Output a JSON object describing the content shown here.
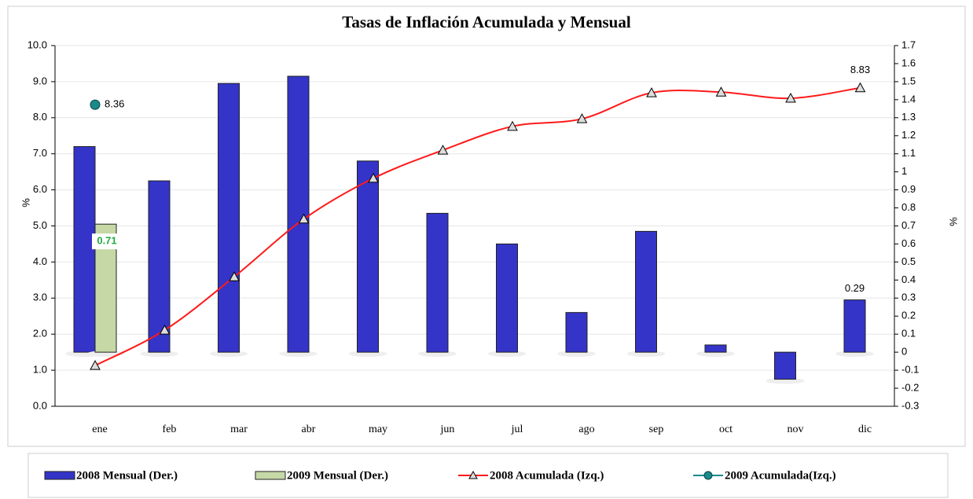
{
  "chart_data": {
    "type": "bar-line",
    "title": "Tasas de Inflación Acumulada y Mensual",
    "ylabel": "%",
    "y2label": "%",
    "categories": [
      "ene",
      "feb",
      "mar",
      "abr",
      "may",
      "jun",
      "jul",
      "ago",
      "sep",
      "oct",
      "nov",
      "dic"
    ],
    "ylim": [
      0,
      10
    ],
    "yticks": [
      {
        "value": 0,
        "label": "0.0"
      },
      {
        "value": 1,
        "label": "1.0"
      },
      {
        "value": 2,
        "label": "2.0"
      },
      {
        "value": 3,
        "label": "3.0"
      },
      {
        "value": 4,
        "label": "4.0"
      },
      {
        "value": 5,
        "label": "5.0"
      },
      {
        "value": 6,
        "label": "6.0"
      },
      {
        "value": 7,
        "label": "7.0"
      },
      {
        "value": 8,
        "label": "8.0"
      },
      {
        "value": 9,
        "label": "9.0"
      },
      {
        "value": 10,
        "label": "10.0"
      }
    ],
    "y2lim": [
      -0.3,
      1.7
    ],
    "y2ticks": [
      -0.3,
      -0.2,
      -0.1,
      0,
      0.1,
      0.2,
      0.3,
      0.4,
      0.5,
      0.6,
      0.7,
      0.8,
      0.9,
      1,
      1.1,
      1.2,
      1.3,
      1.4,
      1.5,
      1.6,
      1.7
    ],
    "grid": true,
    "legend": "bottom",
    "series": [
      {
        "name": "2008 Mensual (Der.)",
        "kind": "bar",
        "axis": "y2",
        "color": "#3434c8",
        "values": [
          1.14,
          0.95,
          1.49,
          1.53,
          1.06,
          0.77,
          0.6,
          0.22,
          0.67,
          0.04,
          -0.15,
          0.29
        ]
      },
      {
        "name": "2009 Mensual (Der.)",
        "kind": "bar",
        "axis": "y2",
        "color": "#c6d8a6",
        "values": [
          0.71,
          null,
          null,
          null,
          null,
          null,
          null,
          null,
          null,
          null,
          null,
          null
        ]
      },
      {
        "name": "2008 Acumulada (Izq.)",
        "kind": "line",
        "color": "#ff1a1a",
        "values": [
          1.13,
          2.11,
          3.59,
          5.19,
          6.32,
          7.1,
          7.76,
          7.97,
          8.69,
          8.71,
          8.54,
          8.83
        ]
      },
      {
        "name": "2009 Acumulada(Izq.)",
        "kind": "line",
        "color": "#1a8a8a",
        "values": [
          8.36,
          null,
          null,
          null,
          null,
          null,
          null,
          null,
          null,
          null,
          null,
          null
        ]
      }
    ]
  }
}
